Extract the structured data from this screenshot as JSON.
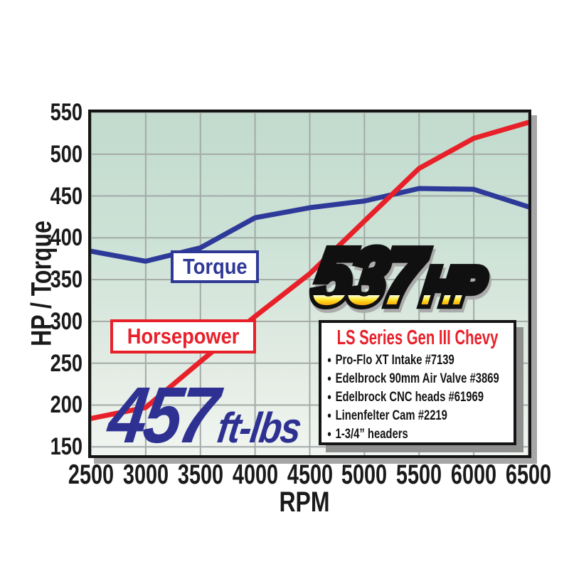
{
  "chart_data": {
    "type": "line",
    "x": [
      2500,
      3000,
      3500,
      4000,
      4500,
      5000,
      5500,
      6000,
      6500
    ],
    "series": [
      {
        "name": "Torque",
        "color": "#2e3a99",
        "values": [
          384,
          372,
          388,
          424,
          436,
          444,
          459,
          458,
          437
        ]
      },
      {
        "name": "Horsepower",
        "color": "#e8202a",
        "values": [
          184,
          197,
          252,
          306,
          357,
          420,
          483,
          519,
          538
        ]
      }
    ],
    "xlabel": "RPM",
    "ylabel": "HP / Torque",
    "xlim": [
      2500,
      6500
    ],
    "ylim": [
      140,
      550
    ],
    "x_ticks": [
      2500,
      3000,
      3500,
      4000,
      4500,
      5000,
      5500,
      6000,
      6500
    ],
    "y_ticks": [
      150,
      200,
      250,
      300,
      350,
      400,
      450,
      500,
      550
    ],
    "grid": true,
    "legend_position": "on-plot label boxes"
  },
  "callouts": {
    "horsepower": {
      "value": "537",
      "unit": "HP"
    },
    "torque": {
      "value": "457",
      "unit": "ft-lbs"
    }
  },
  "spec_box": {
    "title": "LS Series Gen III Chevy",
    "items": [
      "Pro-Flo XT Intake #7139",
      "Edelbrock 90mm Air Valve #3869",
      "Edelbrock CNC heads #61969",
      "Linenfelter Cam #2219",
      "1-3/4” headers"
    ]
  },
  "colors": {
    "horsepower_line": "#e8202a",
    "torque_line": "#2e3a99",
    "callout_blue": "#2e3192",
    "callout_gold_top": "#fffbe2",
    "callout_gold_bottom": "#f5831f",
    "plot_bg_top": "#c2dbce",
    "plot_bg_bottom": "#f1f5f1",
    "gridline": "#a3aaa8",
    "frame": "#141414",
    "shadow": "#a6a6a6"
  }
}
